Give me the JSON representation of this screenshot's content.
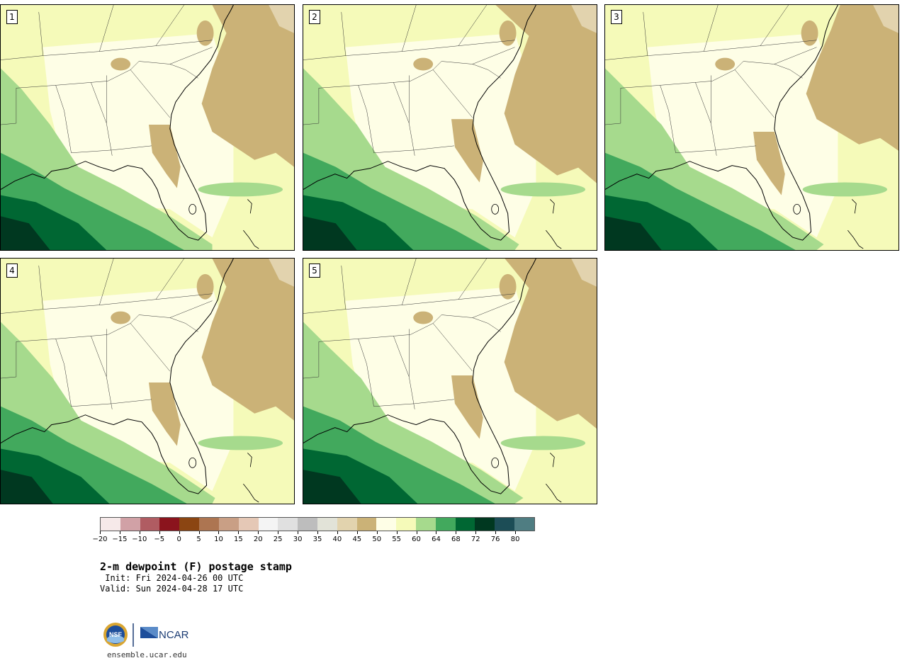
{
  "panels": [
    {
      "label": "1"
    },
    {
      "label": "2"
    },
    {
      "label": "3"
    },
    {
      "label": "4"
    },
    {
      "label": "5"
    }
  ],
  "colorbar": {
    "colors": [
      "#f6e9e9",
      "#d1a1a6",
      "#b05c62",
      "#8b141d",
      "#8b4512",
      "#ad7551",
      "#c99f85",
      "#e5c8b6",
      "#f4f4f4",
      "#e0e0e0",
      "#bdbdbd",
      "#e2e3d8",
      "#e2d3ae",
      "#cbb277",
      "#fefee6",
      "#f5fab9",
      "#a6da8d",
      "#42a95d",
      "#006733",
      "#003820",
      "#1c4d56",
      "#4f7d82"
    ],
    "tick_labels": [
      "−20",
      "−15",
      "−10",
      "−5",
      "0",
      "5",
      "10",
      "15",
      "20",
      "25",
      "30",
      "35",
      "40",
      "45",
      "50",
      "55",
      "60",
      "64",
      "68",
      "72",
      "76",
      "80"
    ]
  },
  "title": "2-m dewpoint (F) postage stamp",
  "init_text": " Init: Fri 2024-04-26 00 UTC",
  "valid_text": "Valid: Sun 2024-04-28 17 UTC",
  "logo": {
    "nsf_text": "NSF",
    "ncar_text": "NCAR"
  },
  "website": "ensemble.ucar.edu",
  "map_colors": {
    "lightest": "#fefee6",
    "light_yellow": "#f5fab9",
    "light_green": "#a6da8d",
    "mid_green": "#42a95d",
    "dark_green": "#006733",
    "darkest_green": "#003820",
    "tan": "#cbb277",
    "pale_tan": "#e2d3ae"
  }
}
